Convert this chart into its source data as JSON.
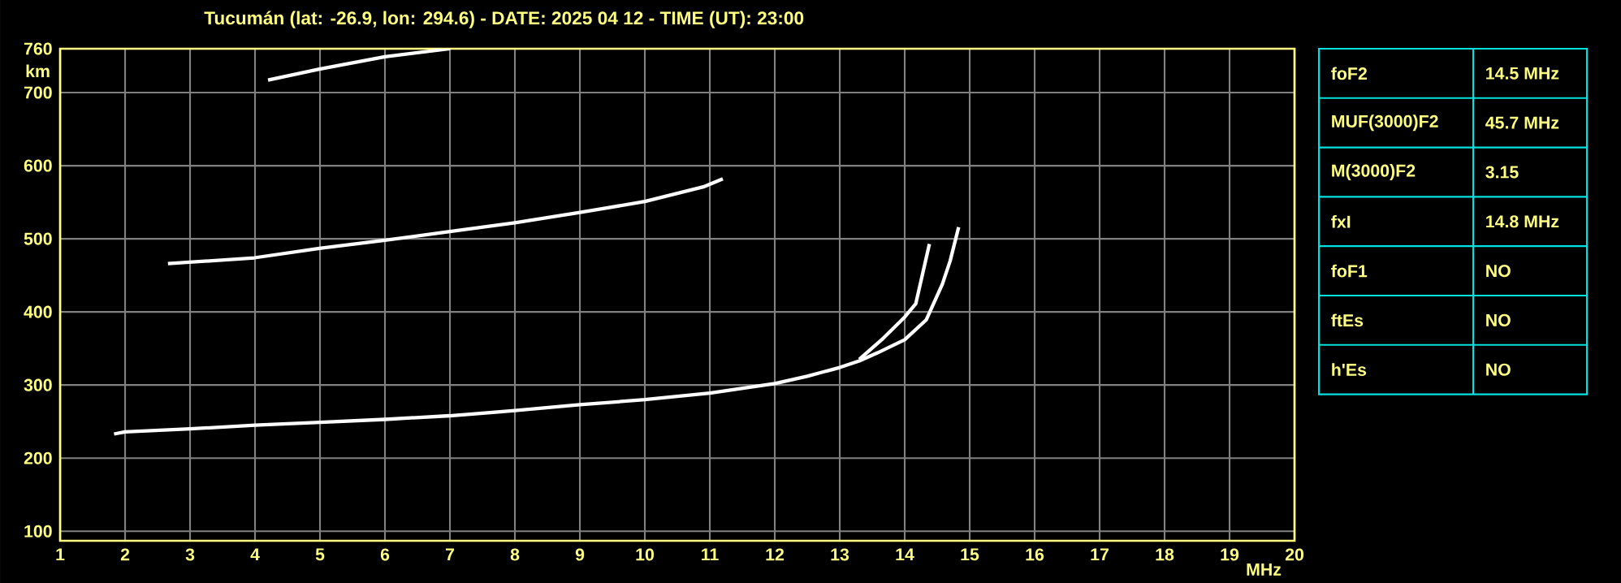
{
  "chart_data": {
    "type": "line",
    "title": "Tucumán (lat: -26.9, lon: 294.6) - DATE: 2025 04 12 - TIME (UT): 23:00",
    "xlabel": "MHz",
    "ylabel": "km",
    "xlim": [
      1,
      20
    ],
    "ylim": [
      87,
      760
    ],
    "xticks": [
      1,
      2,
      3,
      4,
      5,
      6,
      7,
      8,
      9,
      10,
      11,
      12,
      13,
      14,
      15,
      16,
      17,
      18,
      19,
      20
    ],
    "yticks": [
      100,
      200,
      300,
      400,
      500,
      600,
      700,
      760
    ],
    "grid": true,
    "series": [
      {
        "color": "#ffffff",
        "x": [
          1.83,
          2,
          3,
          4,
          5,
          6,
          7,
          8,
          9,
          10,
          11,
          12,
          12.5,
          13,
          13.3,
          13.58,
          14.0,
          14.33,
          14.58,
          14.7,
          14.83
        ],
        "values": [
          233,
          236,
          240,
          245,
          249,
          253,
          258,
          265,
          273,
          280,
          289,
          302,
          312,
          324,
          333,
          344,
          362,
          389,
          438,
          470,
          516
        ]
      },
      {
        "color": "#ffffff",
        "x": [
          13.3,
          13.67,
          14.0,
          14.17,
          14.38
        ],
        "values": [
          335,
          364,
          393,
          411,
          493
        ]
      },
      {
        "color": "#ffffff",
        "x": [
          2.66,
          3.99,
          4.99,
          6.0,
          7.0,
          8.0,
          9.0,
          10.0,
          10.9,
          11.2
        ],
        "values": [
          466,
          474,
          487,
          498,
          510,
          522,
          536,
          551,
          571,
          582
        ]
      },
      {
        "color": "#ffffff",
        "x": [
          4.2,
          4.99,
          6.0,
          7.0
        ],
        "values": [
          717,
          732,
          749,
          760
        ]
      }
    ],
    "annotations": [
      "foF2",
      "14.5 MHz",
      "MUF(3000)F2",
      "45.7 MHz",
      "M(3000)F2",
      "3.15",
      "fxI",
      "14.8 MHz",
      "foF1",
      "NO",
      "ftEs",
      "NO",
      "h'Es",
      "NO"
    ]
  }
}
